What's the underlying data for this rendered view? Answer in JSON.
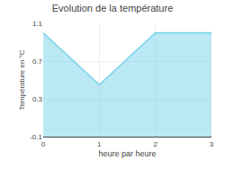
{
  "chart_data": {
    "type": "area",
    "title": "Evolution de la température",
    "xlabel": "heure par heure",
    "ylabel": "Température en °C",
    "x": [
      0,
      1,
      2,
      3
    ],
    "values": [
      1.0,
      0.45,
      1.0,
      1.0
    ],
    "color": "#75d1e8",
    "xlim": [
      0,
      3
    ],
    "ylim": [
      -0.1,
      1.1
    ],
    "xticks": [
      0,
      1,
      2,
      3
    ],
    "yticks": [
      -0.1,
      0.3,
      0.7,
      1.1
    ],
    "grid": true
  }
}
